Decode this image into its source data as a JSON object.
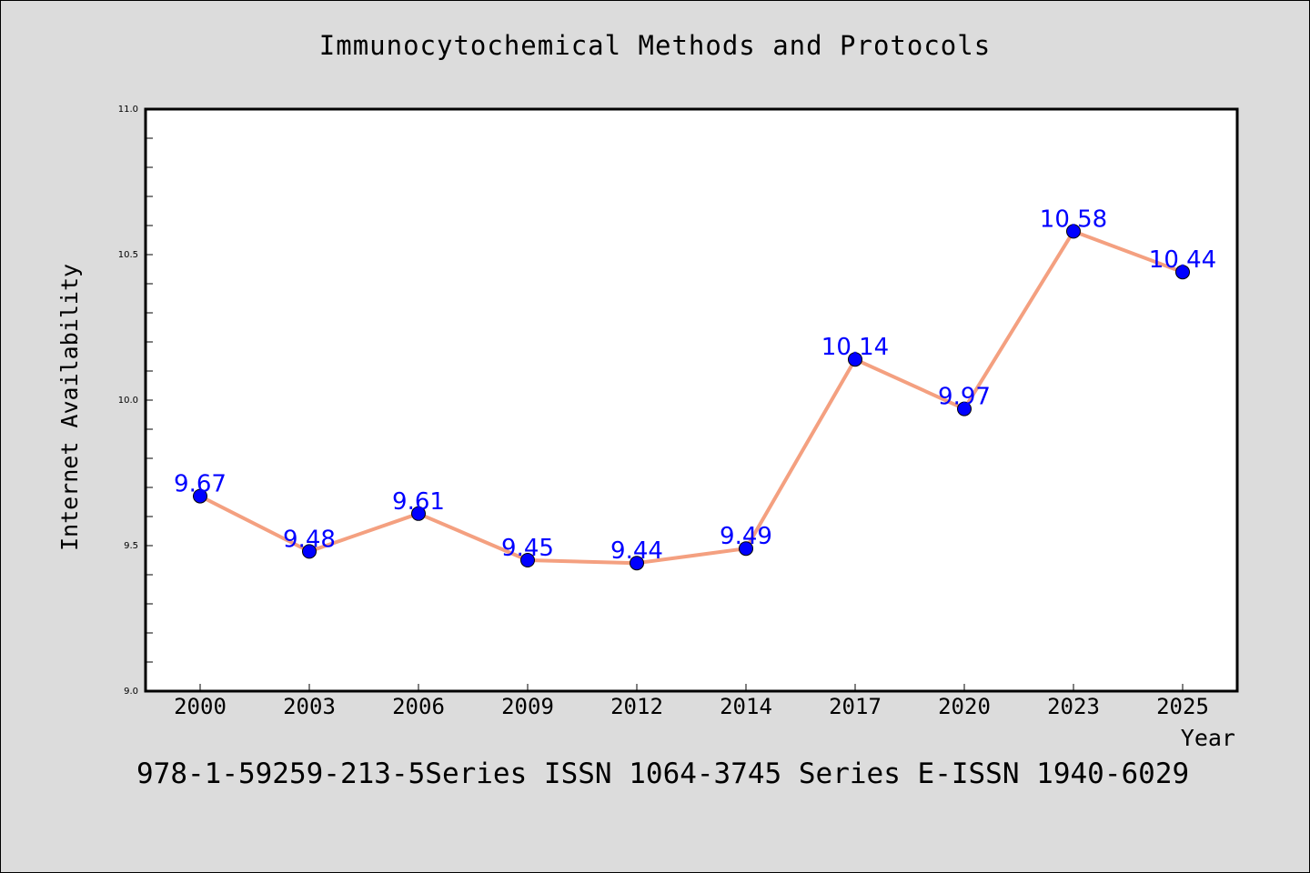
{
  "chart_data": {
    "type": "line",
    "title": "Immunocytochemical Methods and Protocols",
    "xlabel": "Year",
    "ylabel": "Internet Availability",
    "categories": [
      "2000",
      "2003",
      "2006",
      "2009",
      "2012",
      "2014",
      "2017",
      "2020",
      "2023",
      "2025"
    ],
    "series": [
      {
        "values": [
          9.67,
          9.48,
          9.61,
          9.45,
          9.44,
          9.49,
          10.14,
          9.97,
          10.58,
          10.44
        ],
        "data_labels": [
          "9.67",
          "9.48",
          "9.61",
          "9.45",
          "9.44",
          "9.49",
          "10.14",
          "9.97",
          "10.58",
          "10.44"
        ]
      }
    ],
    "ylim": [
      9.0,
      11.0
    ],
    "y_ticks": [
      "9.0",
      "9.5",
      "10.0",
      "10.5",
      "11.0"
    ],
    "y_minor_step": 0.1,
    "grid": false,
    "legend": "none",
    "line_color": "#f4a080",
    "marker_color": "#0000ff",
    "label_color": "#0000ff"
  },
  "footer": {
    "text": "978-1-59259-213-5Series ISSN 1064-3745 Series E-ISSN 1940-6029"
  }
}
